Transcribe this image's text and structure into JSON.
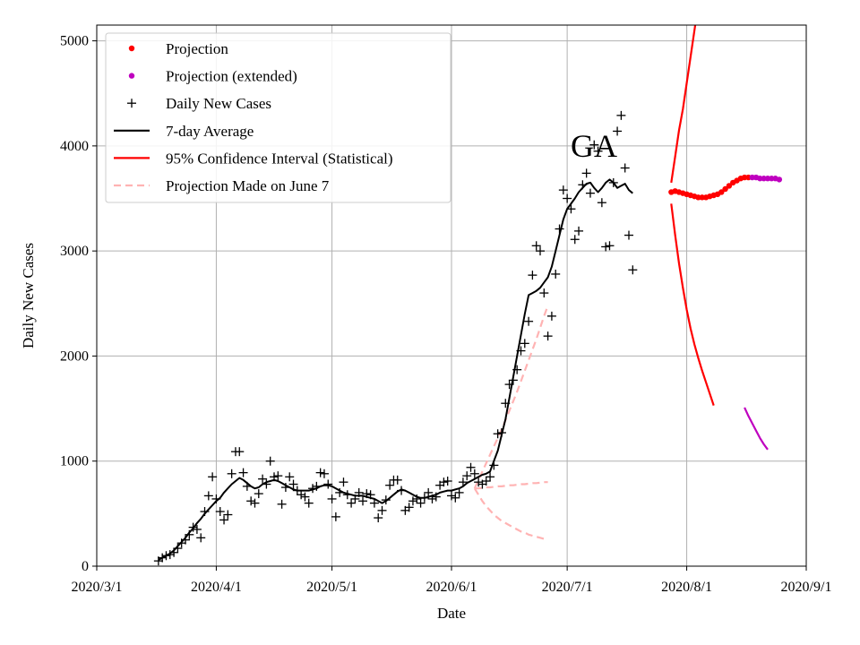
{
  "chart_data": {
    "type": "line",
    "xlabel": "Date",
    "ylabel": "Daily New Cases",
    "annotation": "GA",
    "xlim": [
      "2020-03-01",
      "2020-09-01"
    ],
    "ylim": [
      0,
      5150
    ],
    "grid": true,
    "legend_position": "top-left",
    "x_ticks": [
      {
        "date": "2020-03-01",
        "label": "2020/3/1"
      },
      {
        "date": "2020-04-01",
        "label": "2020/4/1"
      },
      {
        "date": "2020-05-01",
        "label": "2020/5/1"
      },
      {
        "date": "2020-06-01",
        "label": "2020/6/1"
      },
      {
        "date": "2020-07-01",
        "label": "2020/7/1"
      },
      {
        "date": "2020-08-01",
        "label": "2020/8/1"
      },
      {
        "date": "2020-09-01",
        "label": "2020/9/1"
      }
    ],
    "y_ticks": [
      0,
      1000,
      2000,
      3000,
      4000,
      5000
    ],
    "legend": [
      {
        "label": "Projection",
        "kind": "dot",
        "color": "#ff0000"
      },
      {
        "label": "Projection (extended)",
        "kind": "dot",
        "color": "#bf00bf"
      },
      {
        "label": "Daily New Cases",
        "kind": "plus",
        "color": "#000000"
      },
      {
        "label": "7-day Average",
        "kind": "line",
        "color": "#000000"
      },
      {
        "label": "95% Confidence Interval (Statistical)",
        "kind": "line",
        "color": "#ff0000"
      },
      {
        "label": "Projection Made on June 7",
        "kind": "dashed",
        "color": "#ffb3b3"
      }
    ],
    "series": [
      {
        "name": "Daily New Cases",
        "start_date": "2020-03-17",
        "values": [
          50,
          80,
          100,
          110,
          130,
          170,
          220,
          250,
          300,
          370,
          350,
          270,
          520,
          670,
          850,
          640,
          520,
          440,
          490,
          880,
          1090,
          1090,
          890,
          760,
          620,
          600,
          690,
          830,
          780,
          1000,
          850,
          860,
          590,
          750,
          850,
          780,
          720,
          680,
          660,
          600,
          740,
          760,
          890,
          880,
          780,
          640,
          470,
          700,
          800,
          680,
          600,
          640,
          700,
          620,
          690,
          680,
          600,
          460,
          530,
          630,
          770,
          820,
          820,
          720,
          530,
          560,
          620,
          640,
          600,
          650,
          700,
          640,
          660,
          770,
          800,
          810,
          670,
          650,
          700,
          800,
          860,
          940,
          880,
          800,
          780,
          810,
          850,
          960,
          1260,
          1270,
          1550,
          1730,
          1770,
          1870,
          2050,
          2120,
          2330,
          2770,
          3050,
          3000,
          2600,
          2190,
          2380,
          2780,
          3210,
          3580,
          3500,
          3400,
          3110,
          3190,
          3630,
          3740,
          3550,
          4010,
          3950,
          3460,
          3040,
          3050,
          3650,
          4140,
          4290,
          3790,
          3150,
          2820
        ]
      },
      {
        "name": "7-day Average",
        "start_date": "2020-03-17",
        "values": [
          60,
          80,
          100,
          120,
          150,
          190,
          230,
          270,
          320,
          360,
          410,
          450,
          500,
          540,
          580,
          620,
          650,
          700,
          740,
          780,
          810,
          840,
          820,
          790,
          760,
          740,
          750,
          780,
          800,
          810,
          820,
          810,
          790,
          770,
          750,
          730,
          720,
          720,
          720,
          720,
          730,
          740,
          760,
          770,
          770,
          760,
          740,
          720,
          700,
          690,
          680,
          670,
          670,
          670,
          660,
          650,
          640,
          620,
          600,
          620,
          650,
          680,
          710,
          730,
          720,
          700,
          680,
          660,
          650,
          650,
          660,
          670,
          680,
          700,
          710,
          720,
          720,
          730,
          740,
          760,
          790,
          810,
          830,
          850,
          870,
          880,
          900,
          1000,
          1100,
          1250,
          1400,
          1600,
          1800,
          2000,
          2200,
          2400,
          2580,
          2600,
          2620,
          2650,
          2700,
          2750,
          2850,
          3000,
          3150,
          3300,
          3400,
          3450,
          3500,
          3560,
          3600,
          3640,
          3650,
          3600,
          3560,
          3600,
          3650,
          3680,
          3650,
          3600,
          3620,
          3640,
          3580,
          3550
        ]
      },
      {
        "name": "Projection",
        "start_date": "2020-07-28",
        "values": [
          3560,
          3570,
          3560,
          3550,
          3540,
          3530,
          3520,
          3510,
          3510,
          3510,
          3520,
          3530,
          3540,
          3560,
          3590,
          3620,
          3650,
          3670,
          3690,
          3700,
          3700
        ]
      },
      {
        "name": "Projection (extended)",
        "start_date": "2020-08-18",
        "values": [
          3700,
          3700,
          3690,
          3690,
          3690,
          3690,
          3690,
          3680
        ]
      },
      {
        "name": "95% CI upper",
        "start_date": "2020-07-28",
        "values": [
          3650,
          3900,
          4150,
          4350,
          4600,
          4850,
          5100,
          5350
        ]
      },
      {
        "name": "95% CI lower",
        "start_date": "2020-07-28",
        "values": [
          3450,
          3150,
          2880,
          2650,
          2440,
          2260,
          2110,
          1980,
          1860,
          1750,
          1640,
          1530
        ]
      },
      {
        "name": "95% CI lower (extended)",
        "start_date": "2020-08-16",
        "values": [
          1510,
          1430,
          1360,
          1290,
          1220,
          1160,
          1110
        ]
      },
      {
        "name": "Projection Made on June 7 upper",
        "start_date": "2020-06-07",
        "values": [
          740,
          820,
          900,
          980,
          1060,
          1140,
          1220,
          1300,
          1390,
          1480,
          1570,
          1660,
          1760,
          1860,
          1960,
          2060,
          2160,
          2270,
          2380,
          2480
        ]
      },
      {
        "name": "Projection Made on June 7 middle",
        "start_date": "2020-06-07",
        "values": [
          740,
          740,
          745,
          750,
          750,
          755,
          760,
          760,
          765,
          770,
          770,
          775,
          780,
          780,
          785,
          790,
          790,
          795,
          800,
          800
        ]
      },
      {
        "name": "Projection Made on June 7 lower",
        "start_date": "2020-06-07",
        "values": [
          740,
          680,
          620,
          570,
          530,
          490,
          460,
          430,
          410,
          390,
          370,
          350,
          330,
          320,
          300,
          290,
          280,
          270,
          260,
          250
        ]
      }
    ]
  }
}
